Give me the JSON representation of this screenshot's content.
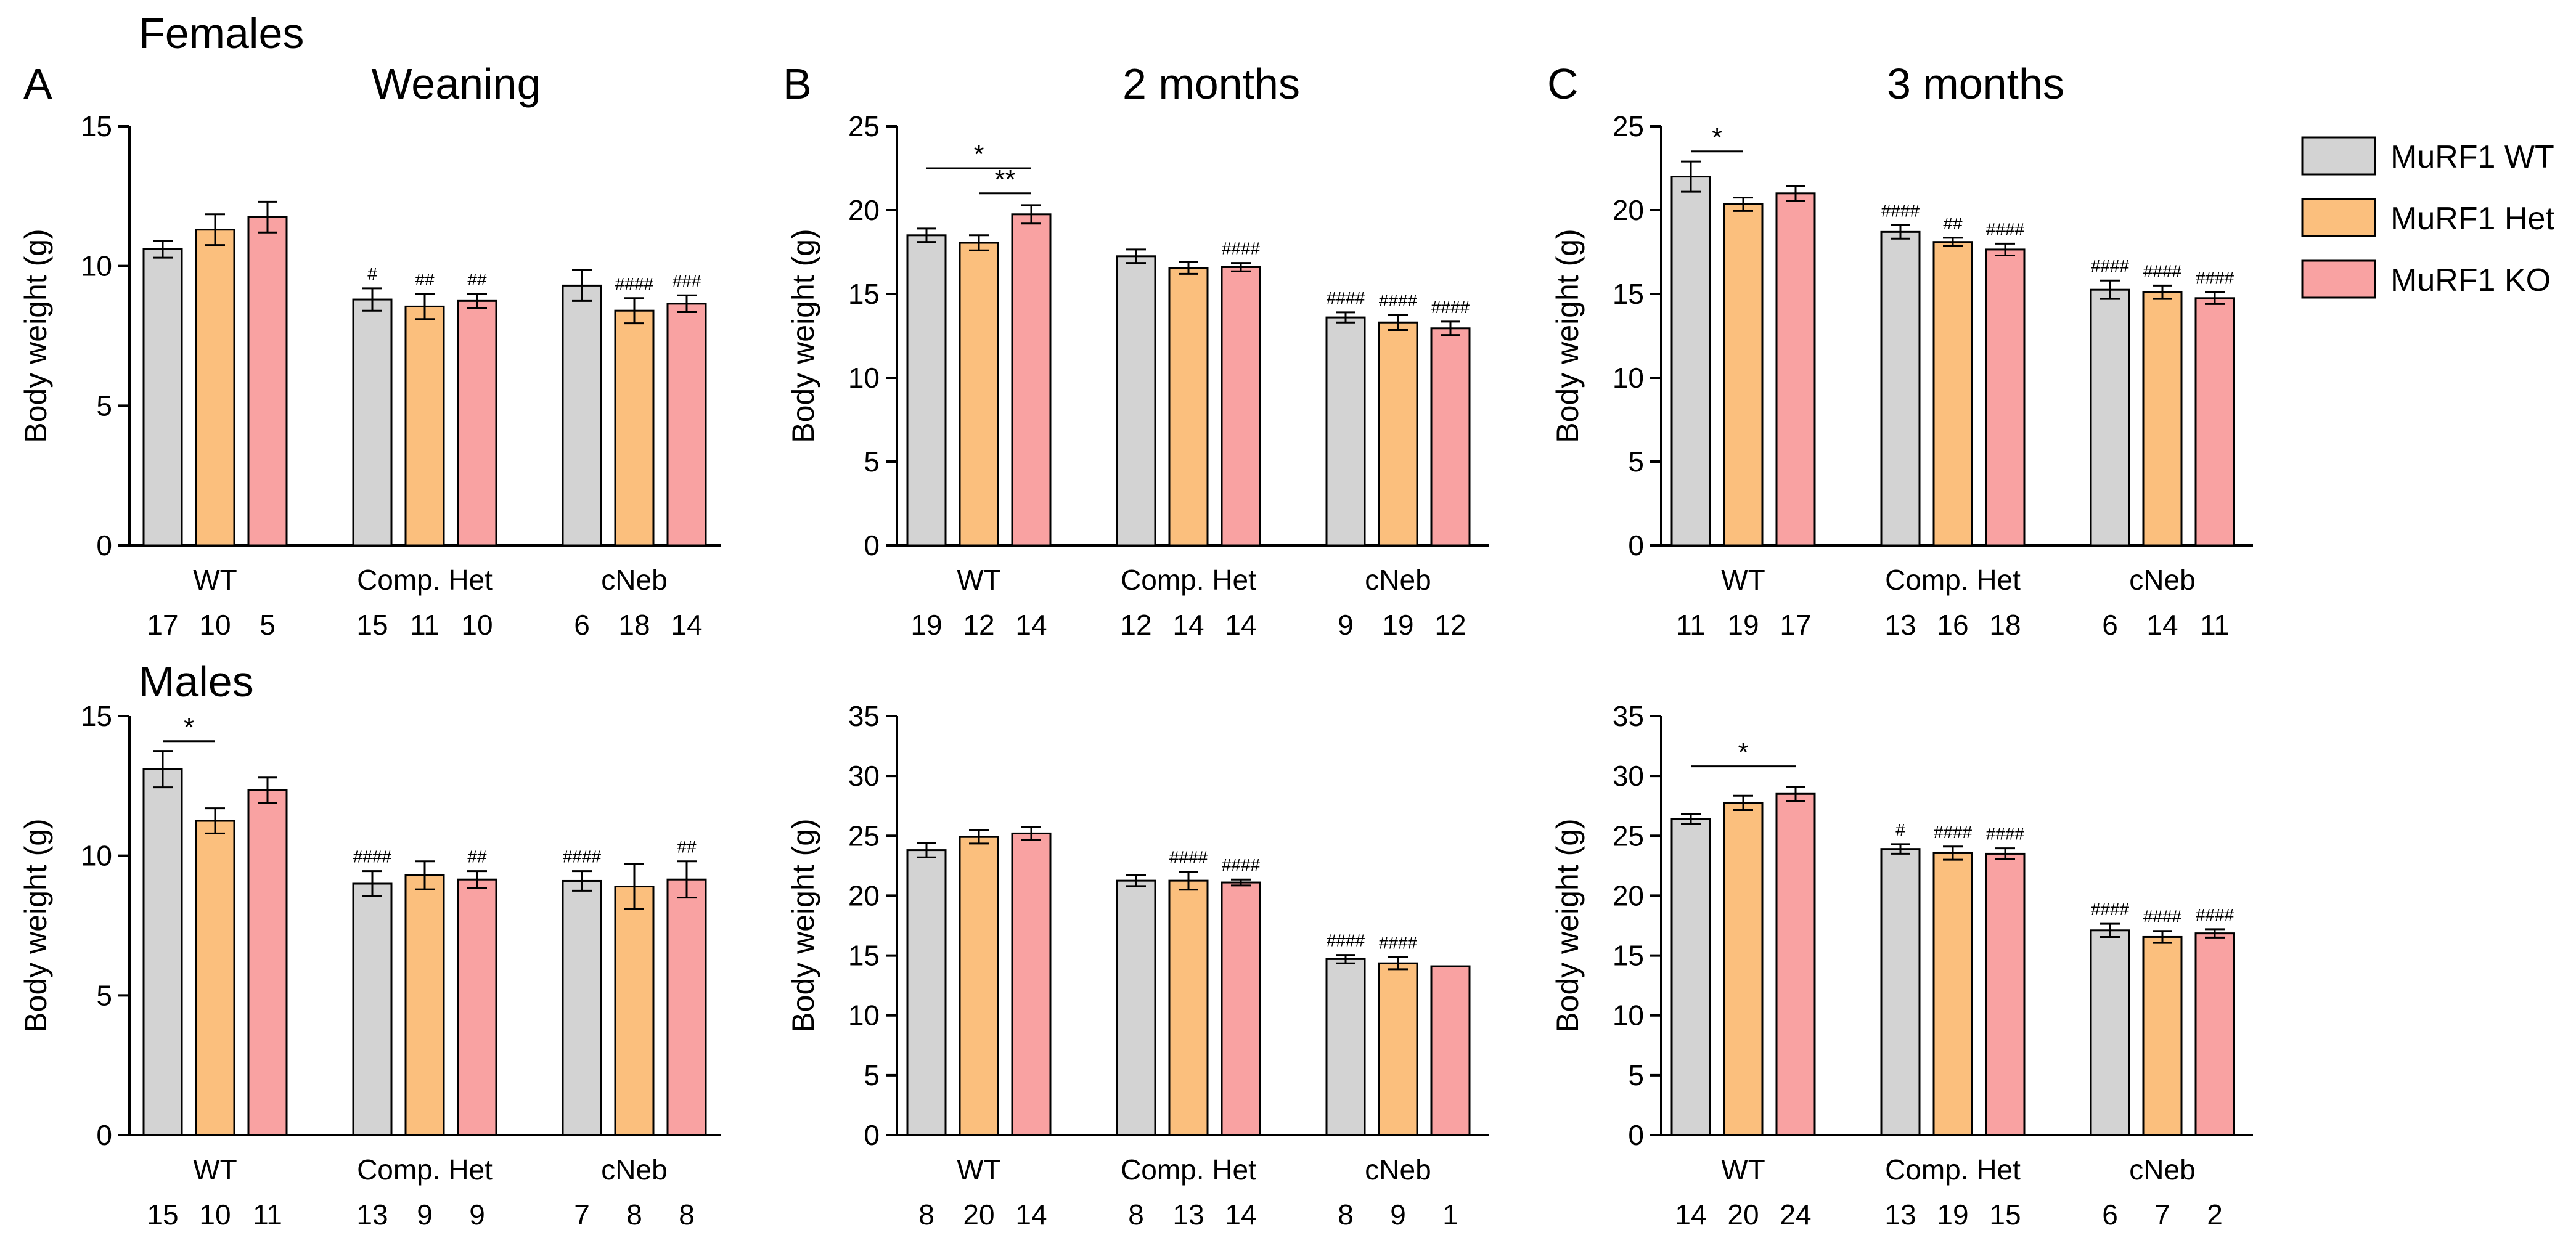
{
  "labels": {
    "females": "Females",
    "males": "Males",
    "panel_a": "A",
    "panel_b": "B",
    "panel_c": "C"
  },
  "legend": [
    {
      "name": "MuRF1 WT",
      "color": "#d3d3d3"
    },
    {
      "name": "MuRF1 Het",
      "color": "#fbbf7d"
    },
    {
      "name": "MuRF1 KO",
      "color": "#f9a2a2"
    }
  ],
  "colors": {
    "wt": "#d3d3d3",
    "het": "#fbbf7d",
    "ko": "#f9a2a2",
    "edge": "#000000"
  },
  "chart_data": [
    {
      "id": "females-weaning",
      "type": "bar",
      "title": "Weaning",
      "ylabel": "Body weight (g)",
      "ylim": [
        0,
        15
      ],
      "yticks": [
        0,
        5,
        10,
        15
      ],
      "categories": [
        "WT",
        "Comp. Het",
        "cNeb"
      ],
      "series": [
        {
          "name": "MuRF1 WT",
          "values": [
            10.6,
            8.8,
            9.3
          ],
          "errors": [
            0.3,
            0.4,
            0.55
          ],
          "n": [
            "17",
            "15",
            "6"
          ],
          "annotations": [
            "",
            "#",
            ""
          ]
        },
        {
          "name": "MuRF1 Het",
          "values": [
            11.3,
            8.55,
            8.4
          ],
          "errors": [
            0.55,
            0.45,
            0.45
          ],
          "n": [
            "10",
            "11",
            "18"
          ],
          "annotations": [
            "",
            "##",
            "####"
          ]
        },
        {
          "name": "MuRF1 KO",
          "values": [
            11.75,
            8.75,
            8.65
          ],
          "errors": [
            0.55,
            0.25,
            0.3
          ],
          "n": [
            "5",
            "10",
            "14"
          ],
          "annotations": [
            "",
            "##",
            "###"
          ]
        }
      ],
      "significance": []
    },
    {
      "id": "females-2months",
      "type": "bar",
      "title": "2 months",
      "ylabel": "Body weight (g)",
      "ylim": [
        0,
        25
      ],
      "yticks": [
        0,
        5,
        10,
        15,
        20,
        25
      ],
      "categories": [
        "WT",
        "Comp. Het",
        "cNeb"
      ],
      "series": [
        {
          "name": "MuRF1 WT",
          "values": [
            18.5,
            17.25,
            13.6
          ],
          "errors": [
            0.4,
            0.4,
            0.3
          ],
          "n": [
            "19",
            "12",
            "9"
          ],
          "annotations": [
            "",
            "",
            "####"
          ]
        },
        {
          "name": "MuRF1 Het",
          "values": [
            18.05,
            16.55,
            13.3
          ],
          "errors": [
            0.45,
            0.35,
            0.45
          ],
          "n": [
            "12",
            "14",
            "19"
          ],
          "annotations": [
            "",
            "",
            "####"
          ]
        },
        {
          "name": "MuRF1 KO",
          "values": [
            19.75,
            16.6,
            12.95
          ],
          "errors": [
            0.55,
            0.25,
            0.4
          ],
          "n": [
            "14",
            "14",
            "12"
          ],
          "annotations": [
            "",
            "####",
            "####"
          ]
        }
      ],
      "significance": [
        {
          "category": 0,
          "from": 0,
          "to": 2,
          "label": "*",
          "y": 22.5
        },
        {
          "category": 0,
          "from": 1,
          "to": 2,
          "label": "**",
          "y": 21.0
        }
      ]
    },
    {
      "id": "females-3months",
      "type": "bar",
      "title": "3 months",
      "ylabel": "Body weight (g)",
      "ylim": [
        0,
        25
      ],
      "yticks": [
        0,
        5,
        10,
        15,
        20,
        25
      ],
      "categories": [
        "WT",
        "Comp. Het",
        "cNeb"
      ],
      "series": [
        {
          "name": "MuRF1 WT",
          "values": [
            22.0,
            18.7,
            15.25
          ],
          "errors": [
            0.9,
            0.4,
            0.55
          ],
          "n": [
            "11",
            "13",
            "6"
          ],
          "annotations": [
            "",
            "####",
            "####"
          ]
        },
        {
          "name": "MuRF1 Het",
          "values": [
            20.35,
            18.1,
            15.1
          ],
          "errors": [
            0.4,
            0.25,
            0.4
          ],
          "n": [
            "19",
            "16",
            "14"
          ],
          "annotations": [
            "",
            "##",
            "####"
          ]
        },
        {
          "name": "MuRF1 KO",
          "values": [
            21.0,
            17.65,
            14.75
          ],
          "errors": [
            0.45,
            0.35,
            0.35
          ],
          "n": [
            "17",
            "18",
            "11"
          ],
          "annotations": [
            "",
            "####",
            "####"
          ]
        }
      ],
      "significance": [
        {
          "category": 0,
          "from": 0,
          "to": 1,
          "label": "*",
          "y": 23.5
        }
      ]
    },
    {
      "id": "males-weaning",
      "type": "bar",
      "title": "",
      "ylabel": "Body weight (g)",
      "ylim": [
        0,
        15
      ],
      "yticks": [
        0,
        5,
        10,
        15
      ],
      "categories": [
        "WT",
        "Comp. Het",
        "cNeb"
      ],
      "series": [
        {
          "name": "MuRF1 WT",
          "values": [
            13.1,
            9.0,
            9.1
          ],
          "errors": [
            0.65,
            0.45,
            0.35
          ],
          "n": [
            "15",
            "13",
            "7"
          ],
          "annotations": [
            "",
            "####",
            "####"
          ]
        },
        {
          "name": "MuRF1 Het",
          "values": [
            11.25,
            9.3,
            8.9
          ],
          "errors": [
            0.45,
            0.5,
            0.8
          ],
          "n": [
            "10",
            "9",
            "8"
          ],
          "annotations": [
            "",
            "",
            ""
          ]
        },
        {
          "name": "MuRF1 KO",
          "values": [
            12.35,
            9.15,
            9.15
          ],
          "errors": [
            0.45,
            0.3,
            0.65
          ],
          "n": [
            "11",
            "9",
            "8"
          ],
          "annotations": [
            "",
            "##",
            "##"
          ]
        }
      ],
      "significance": [
        {
          "category": 0,
          "from": 0,
          "to": 1,
          "label": "*",
          "y": 14.1
        }
      ]
    },
    {
      "id": "males-2months",
      "type": "bar",
      "title": "",
      "ylabel": "Body weight (g)",
      "ylim": [
        0,
        35
      ],
      "yticks": [
        0,
        5,
        10,
        15,
        20,
        25,
        30,
        35
      ],
      "categories": [
        "WT",
        "Comp. Het",
        "cNeb"
      ],
      "series": [
        {
          "name": "MuRF1 WT",
          "values": [
            23.8,
            21.25,
            14.7
          ],
          "errors": [
            0.6,
            0.45,
            0.35
          ],
          "n": [
            "8",
            "8",
            "8"
          ],
          "annotations": [
            "",
            "",
            "####"
          ]
        },
        {
          "name": "MuRF1 Het",
          "values": [
            24.9,
            21.25,
            14.35
          ],
          "errors": [
            0.55,
            0.75,
            0.5
          ],
          "n": [
            "20",
            "13",
            "9"
          ],
          "annotations": [
            "",
            "####",
            "####"
          ]
        },
        {
          "name": "MuRF1 KO",
          "values": [
            25.2,
            21.1,
            14.1
          ],
          "errors": [
            0.55,
            0.25,
            0
          ],
          "n": [
            "14",
            "14",
            "1"
          ],
          "annotations": [
            "",
            "####",
            ""
          ]
        }
      ],
      "significance": []
    },
    {
      "id": "males-3months",
      "type": "bar",
      "title": "",
      "ylabel": "Body weight (g)",
      "ylim": [
        0,
        35
      ],
      "yticks": [
        0,
        5,
        10,
        15,
        20,
        25,
        30,
        35
      ],
      "categories": [
        "WT",
        "Comp. Het",
        "cNeb"
      ],
      "series": [
        {
          "name": "MuRF1 WT",
          "values": [
            26.4,
            23.9,
            17.1
          ],
          "errors": [
            0.4,
            0.4,
            0.55
          ],
          "n": [
            "14",
            "13",
            "6"
          ],
          "annotations": [
            "",
            "#",
            "####"
          ]
        },
        {
          "name": "MuRF1 Het",
          "values": [
            27.75,
            23.55,
            16.55
          ],
          "errors": [
            0.6,
            0.55,
            0.5
          ],
          "n": [
            "20",
            "19",
            "7"
          ],
          "annotations": [
            "",
            "####",
            "####"
          ]
        },
        {
          "name": "MuRF1 KO",
          "values": [
            28.5,
            23.5,
            16.85
          ],
          "errors": [
            0.6,
            0.45,
            0.35
          ],
          "n": [
            "24",
            "15",
            "2"
          ],
          "annotations": [
            "",
            "####",
            "####"
          ]
        }
      ],
      "significance": [
        {
          "category": 0,
          "from": 0,
          "to": 2,
          "label": "*",
          "y": 30.8
        }
      ]
    }
  ]
}
